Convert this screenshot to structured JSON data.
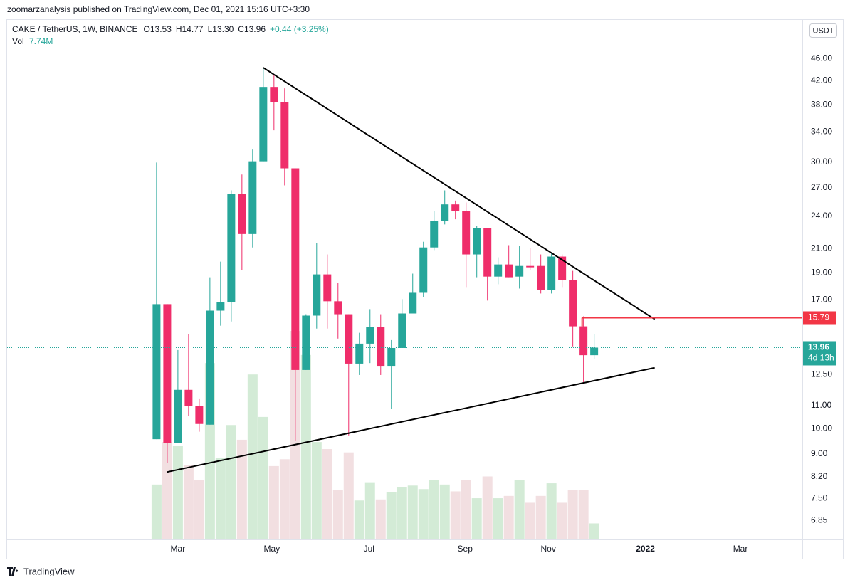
{
  "header": {
    "publisher": "zoomarzanalysis published on TradingView.com, Dec 01, 2021 15:16 UTC+3:30",
    "open_label": "O13.53",
    "high_label": "H14.77",
    "low_label": "L13.30",
    "close_label": "C13.96",
    "change_label": "+0.44 (+3.25%)",
    "currency": "USDT",
    "countdown": "4d 13h",
    "brand": "TradingView"
  },
  "chart_data": {
    "type": "candlestick",
    "log_scale": true,
    "grid": false,
    "ylim": [
      6.33,
      53.6
    ],
    "yticks": [
      {
        "value": 46,
        "label": "46.00"
      },
      {
        "value": 42,
        "label": "42.00"
      },
      {
        "value": 38,
        "label": "38.00"
      },
      {
        "value": 34,
        "label": "34.00"
      },
      {
        "value": 30,
        "label": "30.00"
      },
      {
        "value": 27,
        "label": "27.00"
      },
      {
        "value": 24,
        "label": "24.00"
      },
      {
        "value": 21,
        "label": "21.00"
      },
      {
        "value": 19,
        "label": "19.00"
      },
      {
        "value": 17,
        "label": "17.00"
      },
      {
        "value": 12.5,
        "label": "12.50"
      },
      {
        "value": 11,
        "label": "11.00"
      },
      {
        "value": 10,
        "label": "10.00"
      },
      {
        "value": 9,
        "label": "9.00"
      },
      {
        "value": 8.2,
        "label": "8.20"
      },
      {
        "value": 7.5,
        "label": "7.50"
      },
      {
        "value": 6.85,
        "label": "6.85"
      }
    ],
    "xlim": [
      -14,
      60.5
    ],
    "xticks": [
      {
        "value": 2,
        "label": "Mar"
      },
      {
        "value": 10.8,
        "label": "May"
      },
      {
        "value": 19.9,
        "label": "Jul"
      },
      {
        "value": 28.9,
        "label": "Sep"
      },
      {
        "value": 36.7,
        "label": "Nov"
      },
      {
        "value": 45.8,
        "label": "2022"
      },
      {
        "value": 54.7,
        "label": "Mar"
      }
    ],
    "categories": [
      null,
      null,
      null,
      null,
      null,
      null,
      null,
      null,
      null,
      null,
      null,
      null,
      null,
      null,
      null,
      null,
      null,
      null,
      null,
      null,
      null,
      null,
      null,
      null,
      null,
      null,
      null,
      null,
      null,
      null,
      null,
      null,
      null,
      null,
      null,
      null,
      null,
      null,
      null,
      null,
      null,
      null
    ],
    "series": [
      {
        "name": "CAKE / TetherUS, 1W, BINANCE",
        "up_color": "#26a69a",
        "down_color": "#ef2d6a",
        "open": [
          9.57,
          16.7,
          9.43,
          11.73,
          10.96,
          10.16,
          16.26,
          16.85,
          26.3,
          22.3,
          30.1,
          40.9,
          38.47,
          29.24,
          12.73,
          15.93,
          18.88,
          16.9,
          16.02,
          13.07,
          14.19,
          15.19,
          12.95,
          13.94,
          16.07,
          17.5,
          21.1,
          23.55,
          25.2,
          24.55,
          20.5,
          22.85,
          18.71,
          19.67,
          18.71,
          19.55,
          19.55,
          17.71,
          20.32,
          18.45,
          15.24,
          13.53
        ],
        "high": [
          29.95,
          16.7,
          13.82,
          14.75,
          11.32,
          18.66,
          19.9,
          26.7,
          28.5,
          31.6,
          44.28,
          43.0,
          40.67,
          29.24,
          16.02,
          21.48,
          20.5,
          18.24,
          16.02,
          14.84,
          16.36,
          16.02,
          14.4,
          17.05,
          18.94,
          21.6,
          24.55,
          26.7,
          25.6,
          25.4,
          23.05,
          22.85,
          20.26,
          21.3,
          21.24,
          21.05,
          20.5,
          20.68,
          20.5,
          19.16,
          15.88,
          14.77
        ],
        "low": [
          9.57,
          8.69,
          9.43,
          10.52,
          9.87,
          10.16,
          15.28,
          15.55,
          19.22,
          21.1,
          30.1,
          34.2,
          27.25,
          9.49,
          12.73,
          15.1,
          15.1,
          14.49,
          9.72,
          12.47,
          13.1,
          12.47,
          10.86,
          13.94,
          16.07,
          17.2,
          20.87,
          23.2,
          23.7,
          17.92,
          18.66,
          16.95,
          18.13,
          18.66,
          17.81,
          19.22,
          17.45,
          17.45,
          17.92,
          14.03,
          12.08,
          13.3
        ],
        "close": [
          16.7,
          9.43,
          11.73,
          10.99,
          10.19,
          16.26,
          16.85,
          26.3,
          22.3,
          30.1,
          40.9,
          38.36,
          29.24,
          12.73,
          15.93,
          18.88,
          16.9,
          16.02,
          13.07,
          14.19,
          15.19,
          12.95,
          13.94,
          16.07,
          17.5,
          21.1,
          23.55,
          25.2,
          24.55,
          20.5,
          22.85,
          18.71,
          19.67,
          18.66,
          19.55,
          19.44,
          17.71,
          20.32,
          18.45,
          15.24,
          13.53,
          13.96
        ]
      }
    ],
    "volume": {
      "name": "Vol",
      "ylim": [
        0,
        250
      ],
      "up_color": "#d3ebd6",
      "down_color": "#f2dfe1",
      "values": [
        26.5,
        47,
        45.3,
        35.9,
        28.7,
        85.1,
        39.2,
        55.2,
        48.1,
        79.6,
        59.1,
        35.4,
        38.7,
        100.6,
        89,
        47,
        43.6,
        23.8,
        42,
        18.8,
        27.6,
        19.3,
        22.7,
        25.4,
        26,
        24.3,
        28.7,
        26.5,
        23.2,
        28.7,
        19.9,
        30.4,
        19.9,
        21,
        28.7,
        17.7,
        21,
        27.1,
        17.7,
        23.8,
        23.8,
        7.74
      ],
      "value_labels": [
        null,
        null,
        null,
        null,
        null,
        null,
        null,
        null,
        null,
        null,
        null,
        null,
        null,
        null,
        null,
        null,
        null,
        null,
        null,
        null,
        null,
        null,
        null,
        null,
        null,
        null,
        null,
        null,
        null,
        null,
        null,
        null,
        null,
        null,
        null,
        null,
        null,
        null,
        null,
        null,
        null,
        "7.74M"
      ]
    },
    "trendlines": [
      {
        "x": [
          10,
          46.67
        ],
        "y": [
          44.28,
          15.69
        ],
        "color": "#000000"
      },
      {
        "x": [
          1,
          46.67
        ],
        "y": [
          8.36,
          12.85
        ],
        "color": "#000000"
      }
    ],
    "hline": {
      "value": 15.79,
      "start": 39.87,
      "color": "#f23645"
    },
    "last_price_color": "#26a69a"
  }
}
